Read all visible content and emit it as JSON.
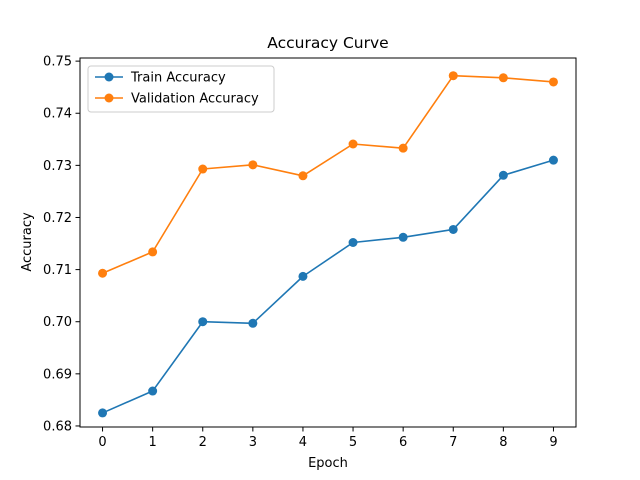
{
  "chart_data": {
    "type": "line",
    "title": "Accuracy Curve",
    "xlabel": "Epoch",
    "ylabel": "Accuracy",
    "x": [
      0,
      1,
      2,
      3,
      4,
      5,
      6,
      7,
      8,
      9
    ],
    "xticks": [
      "0",
      "1",
      "2",
      "3",
      "4",
      "5",
      "6",
      "7",
      "8",
      "9"
    ],
    "yticks": [
      "0.68",
      "0.69",
      "0.70",
      "0.71",
      "0.72",
      "0.73",
      "0.74",
      "0.75"
    ],
    "xlim": [
      -0.45,
      9.45
    ],
    "ylim": [
      0.6798,
      0.7506
    ],
    "grid": false,
    "legend_position": "upper-left",
    "series": [
      {
        "name": "Train Accuracy",
        "color": "#1f77b4",
        "marker": "circle",
        "values": [
          0.6825,
          0.6867,
          0.7,
          0.6997,
          0.7087,
          0.7152,
          0.7162,
          0.7177,
          0.7281,
          0.731
        ]
      },
      {
        "name": "Validation Accuracy",
        "color": "#ff7f0e",
        "marker": "circle",
        "values": [
          0.7093,
          0.7134,
          0.7293,
          0.7301,
          0.728,
          0.7341,
          0.7333,
          0.7472,
          0.7468,
          0.746
        ]
      }
    ]
  }
}
